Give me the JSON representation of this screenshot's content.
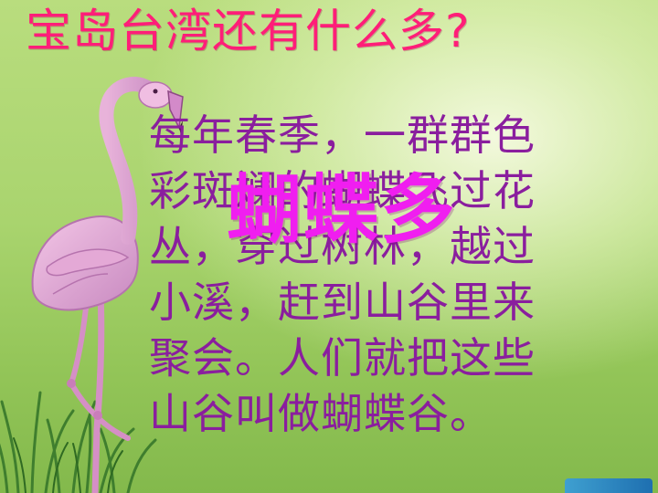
{
  "slide": {
    "title": "宝岛台湾还有什么多?",
    "body_lines": [
      "每年春季，一群群色",
      "彩斑斓的蝴蝶飞过花",
      "丛，穿过树林，越过",
      "小溪，赶到山谷里来",
      "聚会。人们就把这些",
      "山谷叫做蝴蝶谷。"
    ],
    "overlay_word": "蝴蝶多"
  },
  "colors": {
    "title": "#ff1e78",
    "body_text": "#8a1e9e",
    "overlay_word": "#f01ef0",
    "background": "#a9d46e"
  },
  "icons": {
    "flamingo": "flamingo-illustration",
    "grass": "grass-illustration"
  }
}
